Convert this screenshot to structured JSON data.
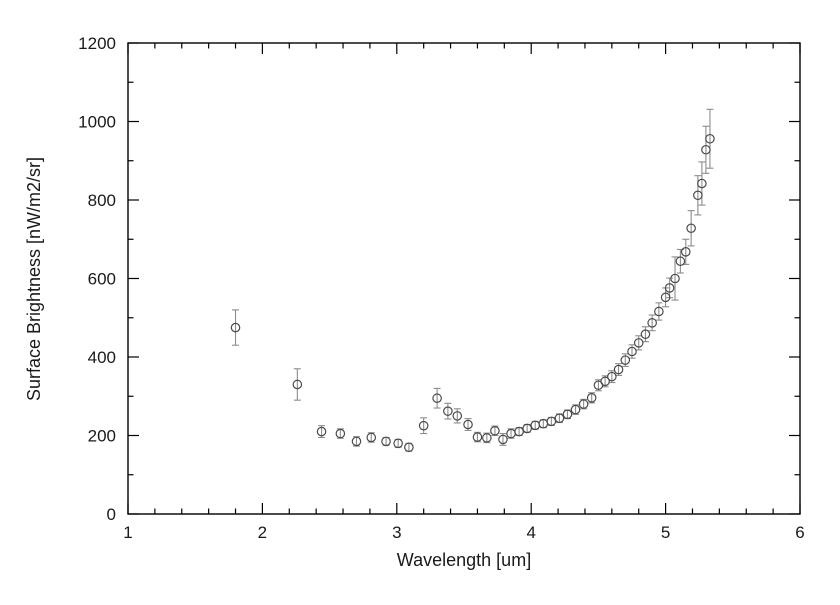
{
  "chart_data": {
    "type": "scatter",
    "title": "",
    "xlabel": "Wavelength [um]",
    "ylabel": "Surface Brightness [nW/m2/sr]",
    "xlim": [
      1,
      6
    ],
    "ylim": [
      0,
      1200
    ],
    "x_ticks": [
      1,
      2,
      3,
      4,
      5,
      6
    ],
    "y_ticks": [
      0,
      200,
      400,
      600,
      800,
      1000,
      1200
    ],
    "x_minor_step": 0.2,
    "y_minor_step": 100,
    "grid": false,
    "legend": false,
    "marker": "open-circle",
    "error_bars": true,
    "colors": {
      "background": "#ffffff",
      "axis": "#000000",
      "marker": "#4a4a4a",
      "error_bar": "#8c8c8c"
    },
    "points": [
      [
        1.8,
        475,
        45
      ],
      [
        2.26,
        330,
        40
      ],
      [
        2.44,
        210,
        15
      ],
      [
        2.58,
        205,
        12
      ],
      [
        2.7,
        185,
        12
      ],
      [
        2.81,
        195,
        12
      ],
      [
        2.92,
        185,
        10
      ],
      [
        3.01,
        180,
        10
      ],
      [
        3.09,
        170,
        10
      ],
      [
        3.2,
        225,
        20
      ],
      [
        3.3,
        295,
        25
      ],
      [
        3.38,
        262,
        20
      ],
      [
        3.45,
        250,
        18
      ],
      [
        3.53,
        228,
        15
      ],
      [
        3.6,
        196,
        12
      ],
      [
        3.67,
        194,
        12
      ],
      [
        3.73,
        212,
        12
      ],
      [
        3.79,
        190,
        15
      ],
      [
        3.85,
        205,
        12
      ],
      [
        3.91,
        210,
        10
      ],
      [
        3.97,
        218,
        10
      ],
      [
        4.03,
        226,
        10
      ],
      [
        4.09,
        230,
        10
      ],
      [
        4.15,
        236,
        10
      ],
      [
        4.21,
        244,
        11
      ],
      [
        4.27,
        254,
        11
      ],
      [
        4.33,
        266,
        12
      ],
      [
        4.39,
        280,
        12
      ],
      [
        4.45,
        296,
        13
      ],
      [
        4.5,
        328,
        14
      ],
      [
        4.55,
        338,
        14
      ],
      [
        4.6,
        350,
        15
      ],
      [
        4.65,
        368,
        15
      ],
      [
        4.7,
        392,
        16
      ],
      [
        4.75,
        414,
        17
      ],
      [
        4.8,
        436,
        18
      ],
      [
        4.85,
        458,
        19
      ],
      [
        4.9,
        487,
        20
      ],
      [
        4.95,
        516,
        22
      ],
      [
        5.0,
        552,
        24
      ],
      [
        5.03,
        576,
        25
      ],
      [
        5.07,
        600,
        55
      ],
      [
        5.11,
        644,
        30
      ],
      [
        5.15,
        668,
        32
      ],
      [
        5.19,
        728,
        45
      ],
      [
        5.24,
        812,
        50
      ],
      [
        5.27,
        842,
        55
      ],
      [
        5.3,
        928,
        60
      ],
      [
        5.33,
        956,
        75
      ]
    ]
  }
}
